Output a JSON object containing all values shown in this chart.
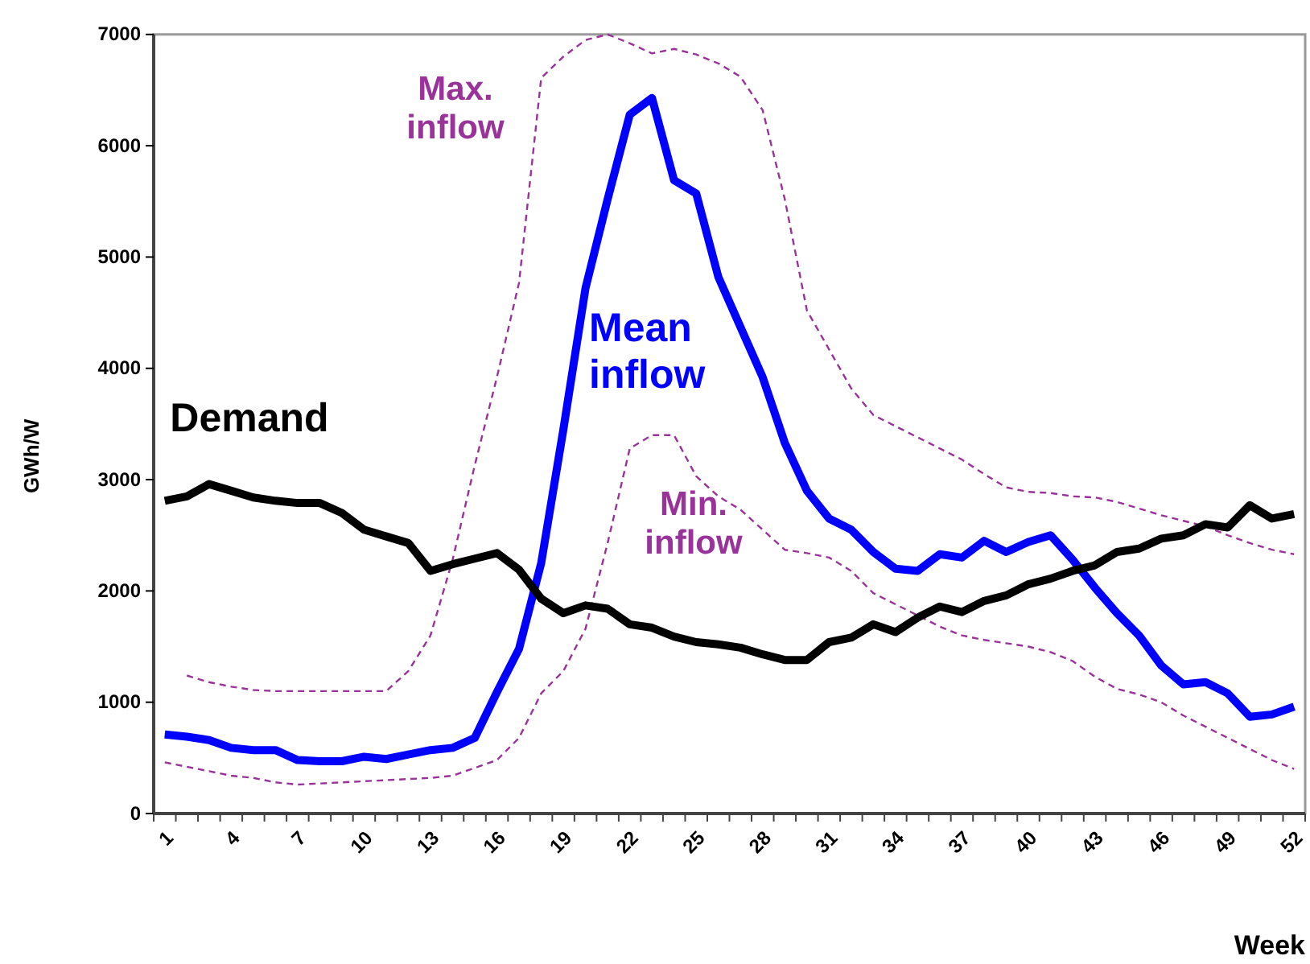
{
  "chart_data": {
    "type": "line",
    "xlabel": "Week",
    "ylabel": "GWh/W",
    "categories": [
      "1",
      null,
      null,
      "4",
      null,
      null,
      "7",
      null,
      null,
      "10",
      null,
      null,
      "13",
      null,
      null,
      "16",
      null,
      null,
      "19",
      null,
      null,
      "22",
      null,
      null,
      "25",
      null,
      null,
      "28",
      null,
      null,
      "31",
      null,
      null,
      "34",
      null,
      null,
      "37",
      null,
      null,
      "40",
      null,
      null,
      "43",
      null,
      null,
      "46",
      null,
      null,
      "49",
      null,
      null,
      "52"
    ],
    "ylim": [
      0,
      7000
    ],
    "yticks": [
      0,
      1000,
      2000,
      3000,
      4000,
      5000,
      6000,
      7000
    ],
    "grid": false,
    "legend": false,
    "marker": "none",
    "series": [
      {
        "name": "Max. inflow",
        "color": "#993399",
        "line_style": "dashed",
        "values": [
          null,
          1240,
          1180,
          1140,
          1110,
          1100,
          1100,
          1100,
          1100,
          1100,
          1100,
          1280,
          1600,
          2280,
          3130,
          3920,
          4770,
          6610,
          6800,
          6950,
          7000,
          6920,
          6830,
          6870,
          6820,
          6740,
          6620,
          6320,
          5520,
          4520,
          4170,
          3820,
          3580,
          3480,
          3380,
          3280,
          3180,
          3050,
          2930,
          2890,
          2880,
          2850,
          2840,
          2800,
          2740,
          2680,
          2630,
          2580,
          2500,
          2430,
          2370,
          2330
        ]
      },
      {
        "name": "Min. inflow",
        "color": "#993399",
        "line_style": "dashed",
        "values": [
          460,
          420,
          380,
          340,
          320,
          280,
          260,
          270,
          280,
          290,
          300,
          310,
          320,
          340,
          410,
          480,
          680,
          1080,
          1280,
          1660,
          2430,
          3280,
          3400,
          3400,
          3030,
          2850,
          2730,
          2550,
          2370,
          2340,
          2300,
          2180,
          1980,
          1880,
          1780,
          1680,
          1600,
          1560,
          1530,
          1500,
          1450,
          1370,
          1230,
          1120,
          1070,
          1000,
          880,
          780,
          680,
          580,
          480,
          400
        ]
      },
      {
        "name": "Mean inflow",
        "color": "#0000ff",
        "line_style": "solid",
        "values": [
          710,
          690,
          660,
          590,
          570,
          570,
          480,
          470,
          470,
          510,
          490,
          530,
          570,
          590,
          680,
          1090,
          1480,
          2250,
          3450,
          4720,
          5520,
          6280,
          6430,
          5690,
          5570,
          4820,
          4370,
          3920,
          3330,
          2900,
          2650,
          2550,
          2350,
          2200,
          2180,
          2330,
          2300,
          2450,
          2350,
          2440,
          2500,
          2280,
          2030,
          1800,
          1600,
          1330,
          1160,
          1180,
          1080,
          870,
          890,
          960
        ]
      },
      {
        "name": "Demand",
        "color": "#000000",
        "line_style": "solid",
        "values": [
          2810,
          2850,
          2960,
          2900,
          2840,
          2810,
          2790,
          2790,
          2700,
          2550,
          2490,
          2430,
          2180,
          2240,
          2290,
          2340,
          2190,
          1930,
          1800,
          1870,
          1840,
          1700,
          1670,
          1590,
          1540,
          1520,
          1490,
          1430,
          1380,
          1380,
          1540,
          1580,
          1700,
          1630,
          1760,
          1860,
          1810,
          1910,
          1960,
          2060,
          2110,
          2180,
          2230,
          2350,
          2380,
          2470,
          2500,
          2600,
          2570,
          2770,
          2650,
          2690
        ]
      }
    ]
  }
}
